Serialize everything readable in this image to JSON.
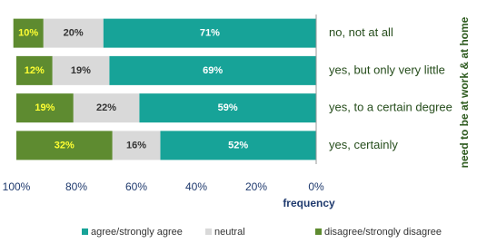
{
  "chart_data": {
    "type": "stacked-barh",
    "categories": [
      "no, not at all",
      "yes, but only very little",
      "yes, to a certain degree",
      "yes, certainly"
    ],
    "series": [
      {
        "name": "agree/strongly agree",
        "color": "#17a398",
        "label_color": "#ffffff",
        "values": [
          71,
          69,
          59,
          52
        ],
        "value_labels": [
          "71%",
          "69%",
          "59%",
          "52%"
        ]
      },
      {
        "name": "neutral",
        "color": "#d9d9d9",
        "label_color": "#333333",
        "values": [
          20,
          19,
          22,
          16
        ],
        "value_labels": [
          "20%",
          "19%",
          "22%",
          "16%"
        ]
      },
      {
        "name": "disagree/strongly disagree",
        "color": "#5e8b30",
        "label_color": "#ffff33",
        "values": [
          10,
          12,
          19,
          32
        ],
        "value_labels": [
          "10%",
          "12%",
          "19%",
          "32%"
        ]
      }
    ],
    "xlim": [
      100,
      0
    ],
    "xticks": [
      {
        "value": 100,
        "label": "100%"
      },
      {
        "value": 80,
        "label": "80%"
      },
      {
        "value": 60,
        "label": "60%"
      },
      {
        "value": 40,
        "label": "40%"
      },
      {
        "value": 20,
        "label": "20%"
      },
      {
        "value": 0,
        "label": "0%"
      }
    ],
    "x_label": "frequency",
    "y_label": "need to be at work & at home",
    "legend": "bottom"
  }
}
